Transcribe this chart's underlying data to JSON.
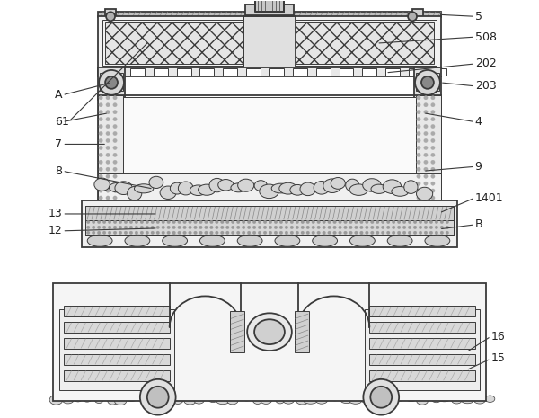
{
  "bg_color": "#ffffff",
  "line_color": "#3a3a3a",
  "lw_main": 1.3,
  "lw_thin": 0.7,
  "lw_thick": 2.0,
  "font_size": 9,
  "label_color": "#222222"
}
